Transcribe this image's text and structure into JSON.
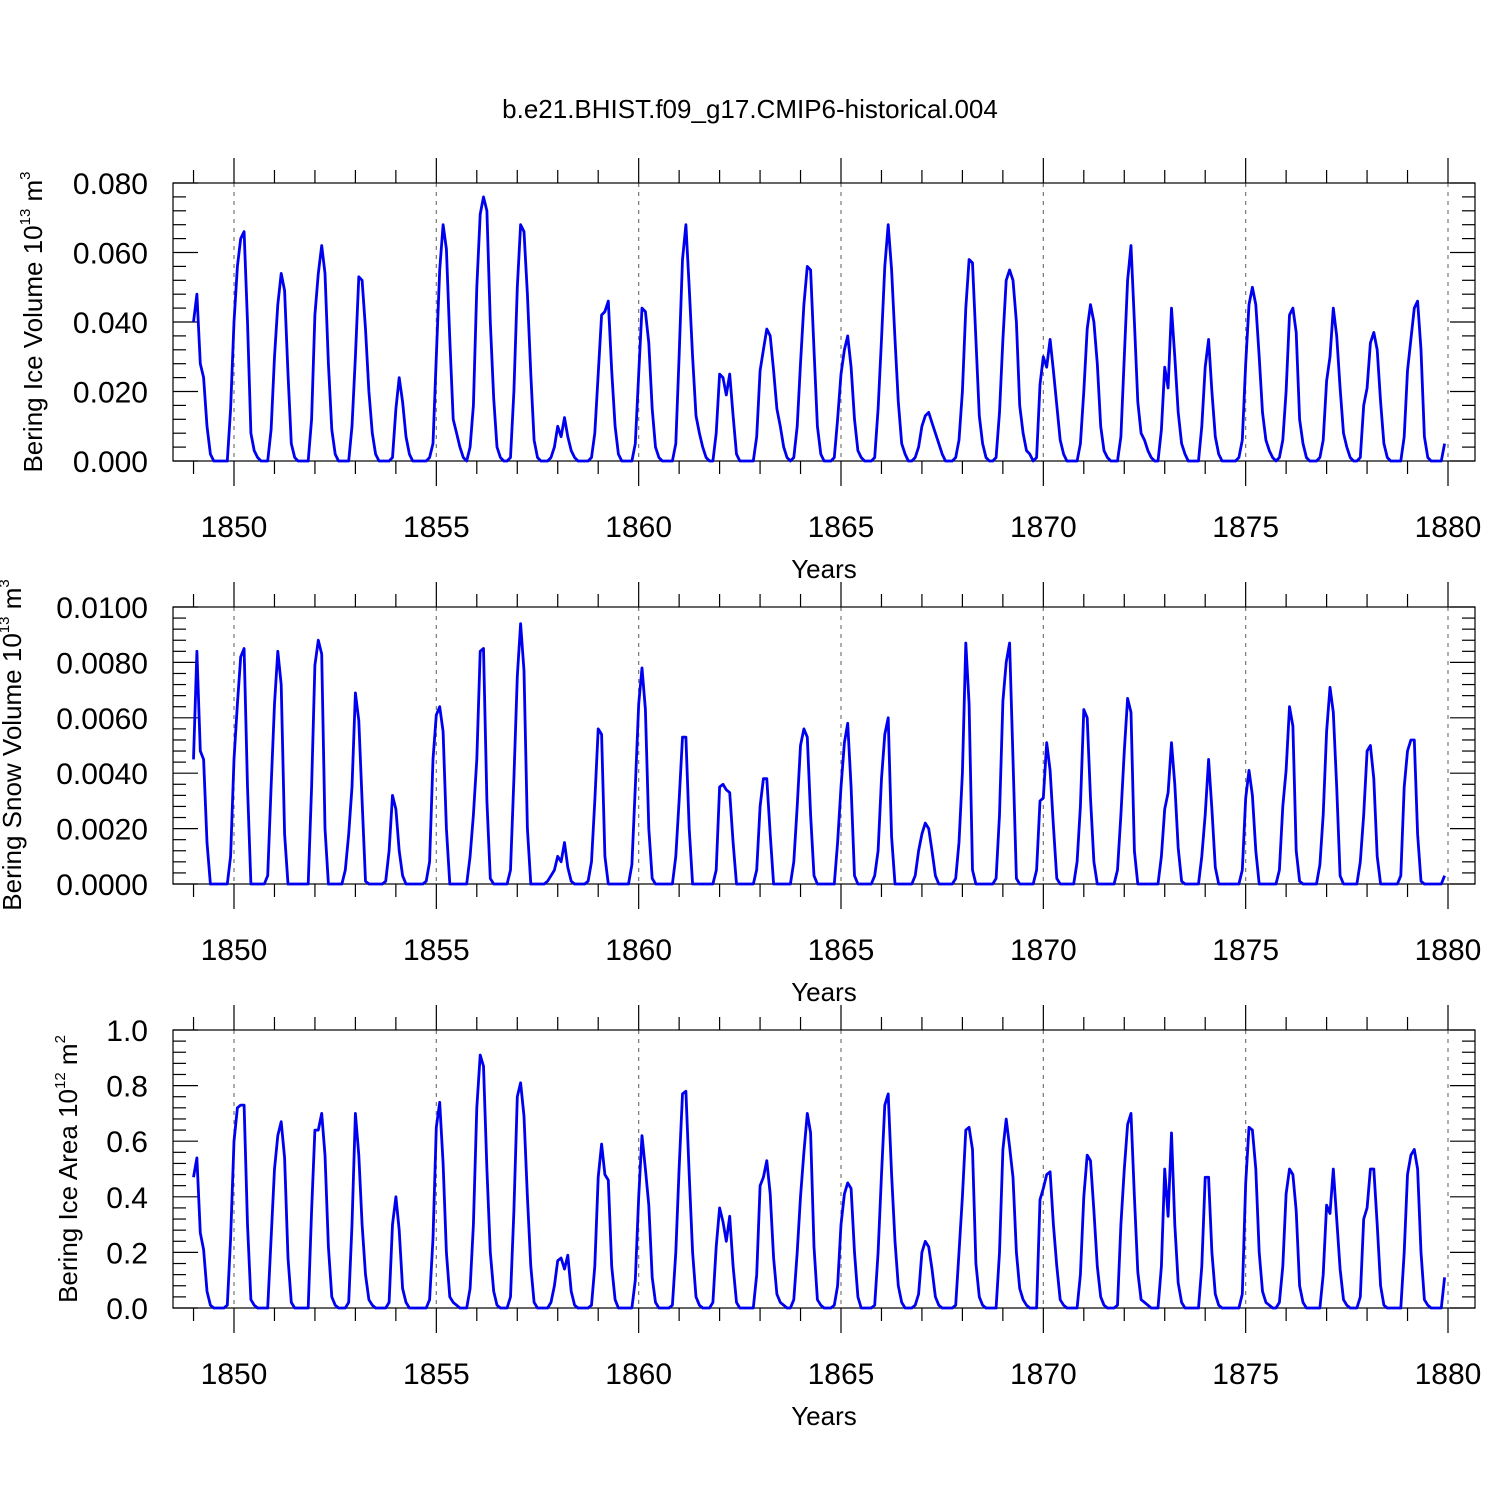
{
  "title": "b.e21.BHIST.f09_g17.CMIP6-historical.004",
  "colors": {
    "series": "#0000f0",
    "axes": "#000000",
    "grid": "#777777"
  },
  "chart_data": [
    {
      "type": "line",
      "ylabel_main": "Bering Ice Volume 10",
      "ylabel_sup": "13",
      "ylabel_unit": " m",
      "ylabel_unit_sup": "3",
      "xlabel": "Years",
      "xlim": [
        1848.9,
        1880.0
      ],
      "ylim": [
        0.0,
        0.08
      ],
      "yticks": [
        0.0,
        0.02,
        0.04,
        0.06,
        0.08
      ],
      "ytick_labels": [
        "0.000",
        "0.020",
        "0.040",
        "0.060",
        "0.080"
      ],
      "xticks": [
        1850,
        1855,
        1860,
        1865,
        1870,
        1875,
        1880
      ],
      "xtick_labels": [
        "1850",
        "1855",
        "1860",
        "1865",
        "1870",
        "1875",
        "1880"
      ],
      "start": 1849.0,
      "step": 0.0833333,
      "values": [
        0.04,
        0.048,
        0.028,
        0.024,
        0.01,
        0.002,
        0.0,
        0.0,
        0.0,
        0.0,
        0.0,
        0.015,
        0.04,
        0.056,
        0.064,
        0.066,
        0.04,
        0.008,
        0.003,
        0.001,
        0.0,
        0.0,
        0.0,
        0.009,
        0.03,
        0.045,
        0.054,
        0.049,
        0.025,
        0.005,
        0.001,
        0.0,
        0.0,
        0.0,
        0.0,
        0.012,
        0.042,
        0.054,
        0.062,
        0.054,
        0.028,
        0.009,
        0.002,
        0.0,
        0.0,
        0.0,
        0.0,
        0.01,
        0.03,
        0.053,
        0.052,
        0.038,
        0.02,
        0.008,
        0.002,
        0.0,
        0.0,
        0.0,
        0.0,
        0.001,
        0.015,
        0.024,
        0.017,
        0.007,
        0.002,
        0.0,
        0.0,
        0.0,
        0.0,
        0.0,
        0.001,
        0.005,
        0.03,
        0.055,
        0.068,
        0.061,
        0.035,
        0.012,
        0.008,
        0.004,
        0.001,
        0.0,
        0.004,
        0.016,
        0.05,
        0.071,
        0.076,
        0.072,
        0.04,
        0.018,
        0.004,
        0.001,
        0.0,
        0.0,
        0.001,
        0.02,
        0.05,
        0.068,
        0.066,
        0.048,
        0.025,
        0.006,
        0.001,
        0.0,
        0.0,
        0.0,
        0.001,
        0.004,
        0.01,
        0.007,
        0.0125,
        0.007,
        0.003,
        0.001,
        0.0,
        0.0,
        0.0,
        0.0,
        0.001,
        0.008,
        0.025,
        0.042,
        0.043,
        0.046,
        0.026,
        0.01,
        0.002,
        0.0,
        0.0,
        0.0,
        0.0,
        0.005,
        0.025,
        0.044,
        0.043,
        0.034,
        0.015,
        0.004,
        0.001,
        0.0,
        0.0,
        0.0,
        0.0,
        0.005,
        0.03,
        0.058,
        0.068,
        0.05,
        0.03,
        0.013,
        0.008,
        0.004,
        0.001,
        0.0,
        0.0,
        0.008,
        0.025,
        0.024,
        0.019,
        0.025,
        0.013,
        0.002,
        0.0,
        0.0,
        0.0,
        0.0,
        0.0,
        0.007,
        0.026,
        0.032,
        0.038,
        0.036,
        0.026,
        0.015,
        0.01,
        0.004,
        0.001,
        0.0,
        0.001,
        0.01,
        0.028,
        0.045,
        0.056,
        0.055,
        0.032,
        0.01,
        0.002,
        0.0,
        0.0,
        0.0,
        0.001,
        0.012,
        0.025,
        0.032,
        0.036,
        0.027,
        0.012,
        0.003,
        0.001,
        0.0,
        0.0,
        0.0,
        0.001,
        0.015,
        0.035,
        0.056,
        0.068,
        0.055,
        0.035,
        0.017,
        0.005,
        0.002,
        0.0,
        0.0,
        0.001,
        0.004,
        0.01,
        0.013,
        0.014,
        0.011,
        0.008,
        0.005,
        0.002,
        0.0,
        0.0,
        0.0,
        0.001,
        0.006,
        0.02,
        0.044,
        0.058,
        0.057,
        0.035,
        0.013,
        0.005,
        0.001,
        0.0,
        0.0,
        0.001,
        0.014,
        0.035,
        0.052,
        0.055,
        0.052,
        0.04,
        0.016,
        0.008,
        0.003,
        0.002,
        0.0,
        0.001,
        0.022,
        0.03,
        0.027,
        0.035,
        0.026,
        0.016,
        0.006,
        0.002,
        0.0,
        0.0,
        0.0,
        0.0,
        0.005,
        0.02,
        0.038,
        0.045,
        0.04,
        0.028,
        0.01,
        0.003,
        0.001,
        0.0,
        0.0,
        0.0,
        0.007,
        0.03,
        0.052,
        0.062,
        0.04,
        0.017,
        0.008,
        0.006,
        0.003,
        0.001,
        0.0,
        0.0,
        0.009,
        0.027,
        0.021,
        0.044,
        0.03,
        0.014,
        0.005,
        0.002,
        0.0,
        0.0,
        0.0,
        0.0,
        0.01,
        0.027,
        0.035,
        0.02,
        0.007,
        0.002,
        0.0,
        0.0,
        0.0,
        0.0,
        0.0,
        0.001,
        0.006,
        0.028,
        0.045,
        0.05,
        0.045,
        0.03,
        0.014,
        0.006,
        0.003,
        0.001,
        0.0,
        0.001,
        0.006,
        0.02,
        0.042,
        0.044,
        0.037,
        0.012,
        0.005,
        0.001,
        0.0,
        0.0,
        0.0,
        0.001,
        0.006,
        0.023,
        0.03,
        0.044,
        0.036,
        0.021,
        0.008,
        0.004,
        0.001,
        0.0,
        0.0,
        0.001,
        0.016,
        0.021,
        0.034,
        0.037,
        0.032,
        0.017,
        0.005,
        0.001,
        0.0,
        0.0,
        0.0,
        0.0,
        0.007,
        0.026,
        0.035,
        0.044,
        0.046,
        0.032,
        0.007,
        0.001,
        0.0,
        0.0,
        0.0,
        0.0,
        0.005
      ]
    },
    {
      "type": "line",
      "ylabel_main": "Bering Snow Volume 10",
      "ylabel_sup": "13",
      "ylabel_unit": " m",
      "ylabel_unit_sup": "3",
      "xlabel": "Years",
      "xlim": [
        1848.9,
        1880.0
      ],
      "ylim": [
        0.0,
        0.01
      ],
      "yticks": [
        0.0,
        0.002,
        0.004,
        0.006,
        0.008,
        0.01
      ],
      "ytick_labels": [
        "0.0000",
        "0.0020",
        "0.0040",
        "0.0060",
        "0.0080",
        "0.0100"
      ],
      "xticks": [
        1850,
        1855,
        1860,
        1865,
        1870,
        1875,
        1880
      ],
      "xtick_labels": [
        "1850",
        "1855",
        "1860",
        "1865",
        "1870",
        "1875",
        "1880"
      ],
      "start": 1849.0,
      "step": 0.0833333,
      "values": [
        0.0045,
        0.0084,
        0.0048,
        0.0045,
        0.0015,
        0.0,
        0.0,
        0.0,
        0.0,
        0.0,
        0.0,
        0.001,
        0.0045,
        0.0065,
        0.0082,
        0.0085,
        0.0035,
        0.0,
        0.0,
        0.0,
        0.0,
        0.0,
        0.0003,
        0.0035,
        0.0065,
        0.0084,
        0.0072,
        0.0018,
        0.0,
        0.0,
        0.0,
        0.0,
        0.0,
        0.0,
        0.0,
        0.0035,
        0.0079,
        0.0088,
        0.0083,
        0.002,
        0.0,
        0.0,
        0.0,
        0.0,
        0.0,
        0.0005,
        0.0018,
        0.0035,
        0.0069,
        0.0059,
        0.003,
        0.0001,
        0.0,
        0.0,
        0.0,
        0.0,
        0.0,
        0.0001,
        0.0012,
        0.0032,
        0.0027,
        0.0012,
        0.0003,
        0.0,
        0.0,
        0.0,
        0.0,
        0.0,
        0.0,
        0.0001,
        0.0008,
        0.0045,
        0.0061,
        0.0064,
        0.0055,
        0.002,
        0.0,
        0.0,
        0.0,
        0.0,
        0.0,
        0.0,
        0.001,
        0.0025,
        0.0045,
        0.0084,
        0.0085,
        0.003,
        0.0002,
        0.0,
        0.0,
        0.0,
        0.0,
        0.0,
        0.0005,
        0.0038,
        0.0075,
        0.0094,
        0.0077,
        0.002,
        0.0,
        0.0,
        0.0,
        0.0,
        0.0,
        0.0001,
        0.0003,
        0.0005,
        0.001,
        0.0008,
        0.0015,
        0.0006,
        0.0001,
        0.0,
        0.0,
        0.0,
        0.0,
        0.0001,
        0.0008,
        0.003,
        0.0056,
        0.0054,
        0.001,
        0.0,
        0.0,
        0.0,
        0.0,
        0.0,
        0.0,
        0.0,
        0.0007,
        0.0035,
        0.0065,
        0.0078,
        0.0063,
        0.002,
        0.0002,
        0.0,
        0.0,
        0.0,
        0.0,
        0.0,
        0.0,
        0.001,
        0.003,
        0.0053,
        0.0053,
        0.002,
        0.0,
        0.0,
        0.0,
        0.0,
        0.0,
        0.0,
        0.0,
        0.0005,
        0.0035,
        0.0036,
        0.0034,
        0.0033,
        0.0015,
        0.0,
        0.0,
        0.0,
        0.0,
        0.0,
        0.0,
        0.0005,
        0.0028,
        0.0038,
        0.0038,
        0.0018,
        0.0,
        0.0,
        0.0,
        0.0,
        0.0,
        0.0,
        0.0008,
        0.0028,
        0.005,
        0.0056,
        0.0053,
        0.0025,
        0.0003,
        0.0,
        0.0,
        0.0,
        0.0,
        0.0,
        0.0,
        0.0015,
        0.0035,
        0.0051,
        0.0058,
        0.0035,
        0.0003,
        0.0,
        0.0,
        0.0,
        0.0,
        0.0,
        0.0003,
        0.0012,
        0.0038,
        0.0054,
        0.006,
        0.0017,
        0.0,
        0.0,
        0.0,
        0.0,
        0.0,
        0.0,
        0.0003,
        0.0012,
        0.0018,
        0.0022,
        0.002,
        0.0012,
        0.0003,
        0.0,
        0.0,
        0.0,
        0.0,
        0.0,
        0.0002,
        0.0015,
        0.004,
        0.0087,
        0.0065,
        0.0005,
        0.0,
        0.0,
        0.0,
        0.0,
        0.0,
        0.0,
        0.0002,
        0.0025,
        0.0066,
        0.008,
        0.0087,
        0.0045,
        0.0002,
        0.0,
        0.0,
        0.0,
        0.0,
        0.0,
        0.0005,
        0.003,
        0.0031,
        0.0051,
        0.0041,
        0.0021,
        0.0002,
        0.0,
        0.0,
        0.0,
        0.0,
        0.0,
        0.0008,
        0.0028,
        0.0063,
        0.006,
        0.0031,
        0.0008,
        0.0,
        0.0,
        0.0,
        0.0,
        0.0,
        0.0,
        0.0005,
        0.0025,
        0.0048,
        0.0067,
        0.0062,
        0.0012,
        0.0,
        0.0,
        0.0,
        0.0,
        0.0,
        0.0,
        0.0,
        0.001,
        0.0027,
        0.0033,
        0.0051,
        0.0036,
        0.0013,
        0.0001,
        0.0,
        0.0,
        0.0,
        0.0,
        0.0,
        0.001,
        0.0025,
        0.0045,
        0.0027,
        0.0006,
        0.0,
        0.0,
        0.0,
        0.0,
        0.0,
        0.0,
        0.0,
        0.0005,
        0.0031,
        0.0041,
        0.0032,
        0.0012,
        0.0,
        0.0,
        0.0,
        0.0,
        0.0,
        0.0,
        0.0005,
        0.0028,
        0.0041,
        0.0064,
        0.0057,
        0.0012,
        0.0001,
        0.0,
        0.0,
        0.0,
        0.0,
        0.0,
        0.0007,
        0.0025,
        0.0055,
        0.0071,
        0.0062,
        0.0035,
        0.0003,
        0.0,
        0.0,
        0.0,
        0.0,
        0.0,
        0.0008,
        0.0025,
        0.0048,
        0.005,
        0.0038,
        0.001,
        0.0,
        0.0,
        0.0,
        0.0,
        0.0,
        0.0,
        0.0003,
        0.0035,
        0.0048,
        0.0052,
        0.0052,
        0.0018,
        0.0001,
        0.0,
        0.0,
        0.0,
        0.0,
        0.0,
        0.0,
        0.0003
      ]
    },
    {
      "type": "line",
      "ylabel_main": "Bering Ice Area 10",
      "ylabel_sup": "12",
      "ylabel_unit": " m",
      "ylabel_unit_sup": "2",
      "xlabel": "Years",
      "xlim": [
        1848.9,
        1880.0
      ],
      "ylim": [
        0.0,
        1.0
      ],
      "yticks": [
        0.0,
        0.2,
        0.4,
        0.6,
        0.8,
        1.0
      ],
      "ytick_labels": [
        "0.0",
        "0.2",
        "0.4",
        "0.6",
        "0.8",
        "1.0"
      ],
      "xticks": [
        1850,
        1855,
        1860,
        1865,
        1870,
        1875,
        1880
      ],
      "xtick_labels": [
        "1850",
        "1855",
        "1860",
        "1865",
        "1870",
        "1875",
        "1880"
      ],
      "start": 1849.0,
      "step": 0.0833333,
      "values": [
        0.47,
        0.54,
        0.27,
        0.21,
        0.06,
        0.01,
        0.0,
        0.0,
        0.0,
        0.0,
        0.01,
        0.25,
        0.6,
        0.72,
        0.73,
        0.73,
        0.3,
        0.03,
        0.01,
        0.0,
        0.0,
        0.0,
        0.0,
        0.25,
        0.5,
        0.62,
        0.67,
        0.54,
        0.18,
        0.02,
        0.0,
        0.0,
        0.0,
        0.0,
        0.0,
        0.35,
        0.64,
        0.64,
        0.7,
        0.55,
        0.22,
        0.04,
        0.01,
        0.0,
        0.0,
        0.0,
        0.02,
        0.3,
        0.7,
        0.55,
        0.3,
        0.12,
        0.03,
        0.01,
        0.0,
        0.0,
        0.0,
        0.0,
        0.02,
        0.3,
        0.4,
        0.28,
        0.07,
        0.02,
        0.0,
        0.0,
        0.0,
        0.0,
        0.0,
        0.0,
        0.03,
        0.25,
        0.65,
        0.74,
        0.52,
        0.2,
        0.04,
        0.02,
        0.01,
        0.0,
        0.0,
        0.0,
        0.07,
        0.3,
        0.72,
        0.91,
        0.87,
        0.5,
        0.2,
        0.06,
        0.01,
        0.0,
        0.0,
        0.0,
        0.04,
        0.35,
        0.76,
        0.81,
        0.69,
        0.4,
        0.15,
        0.02,
        0.0,
        0.0,
        0.0,
        0.0,
        0.02,
        0.08,
        0.17,
        0.18,
        0.14,
        0.19,
        0.06,
        0.01,
        0.0,
        0.0,
        0.0,
        0.0,
        0.01,
        0.15,
        0.47,
        0.59,
        0.48,
        0.46,
        0.15,
        0.03,
        0.0,
        0.0,
        0.0,
        0.0,
        0.0,
        0.1,
        0.4,
        0.62,
        0.5,
        0.37,
        0.11,
        0.02,
        0.0,
        0.0,
        0.0,
        0.0,
        0.01,
        0.2,
        0.5,
        0.77,
        0.78,
        0.48,
        0.2,
        0.04,
        0.01,
        0.0,
        0.0,
        0.0,
        0.02,
        0.22,
        0.36,
        0.31,
        0.24,
        0.33,
        0.15,
        0.02,
        0.0,
        0.0,
        0.0,
        0.0,
        0.0,
        0.12,
        0.44,
        0.47,
        0.53,
        0.41,
        0.18,
        0.05,
        0.02,
        0.01,
        0.0,
        0.0,
        0.03,
        0.2,
        0.4,
        0.56,
        0.7,
        0.63,
        0.22,
        0.03,
        0.01,
        0.0,
        0.0,
        0.0,
        0.01,
        0.08,
        0.3,
        0.41,
        0.45,
        0.43,
        0.2,
        0.04,
        0.0,
        0.0,
        0.0,
        0.0,
        0.01,
        0.2,
        0.48,
        0.73,
        0.77,
        0.48,
        0.24,
        0.08,
        0.02,
        0.0,
        0.0,
        0.0,
        0.01,
        0.05,
        0.2,
        0.24,
        0.22,
        0.14,
        0.04,
        0.01,
        0.0,
        0.0,
        0.0,
        0.0,
        0.01,
        0.2,
        0.4,
        0.64,
        0.65,
        0.57,
        0.16,
        0.04,
        0.01,
        0.0,
        0.0,
        0.0,
        0.0,
        0.2,
        0.57,
        0.68,
        0.58,
        0.47,
        0.2,
        0.07,
        0.03,
        0.01,
        0.0,
        0.0,
        0.0,
        0.39,
        0.43,
        0.48,
        0.49,
        0.3,
        0.15,
        0.03,
        0.01,
        0.0,
        0.0,
        0.0,
        0.0,
        0.12,
        0.4,
        0.55,
        0.53,
        0.35,
        0.15,
        0.04,
        0.01,
        0.0,
        0.0,
        0.0,
        0.01,
        0.3,
        0.5,
        0.66,
        0.7,
        0.4,
        0.13,
        0.03,
        0.02,
        0.01,
        0.0,
        0.0,
        0.0,
        0.15,
        0.5,
        0.33,
        0.63,
        0.3,
        0.09,
        0.02,
        0.0,
        0.0,
        0.0,
        0.0,
        0.0,
        0.15,
        0.47,
        0.47,
        0.2,
        0.05,
        0.01,
        0.0,
        0.0,
        0.0,
        0.0,
        0.0,
        0.0,
        0.05,
        0.45,
        0.65,
        0.64,
        0.5,
        0.2,
        0.06,
        0.02,
        0.01,
        0.0,
        0.0,
        0.02,
        0.15,
        0.41,
        0.5,
        0.48,
        0.35,
        0.08,
        0.02,
        0.0,
        0.0,
        0.0,
        0.0,
        0.0,
        0.12,
        0.37,
        0.34,
        0.5,
        0.32,
        0.14,
        0.03,
        0.01,
        0.0,
        0.0,
        0.0,
        0.04,
        0.32,
        0.36,
        0.5,
        0.5,
        0.3,
        0.08,
        0.01,
        0.0,
        0.0,
        0.0,
        0.0,
        0.0,
        0.2,
        0.48,
        0.55,
        0.57,
        0.5,
        0.2,
        0.03,
        0.01,
        0.0,
        0.0,
        0.0,
        0.0,
        0.11
      ]
    }
  ]
}
